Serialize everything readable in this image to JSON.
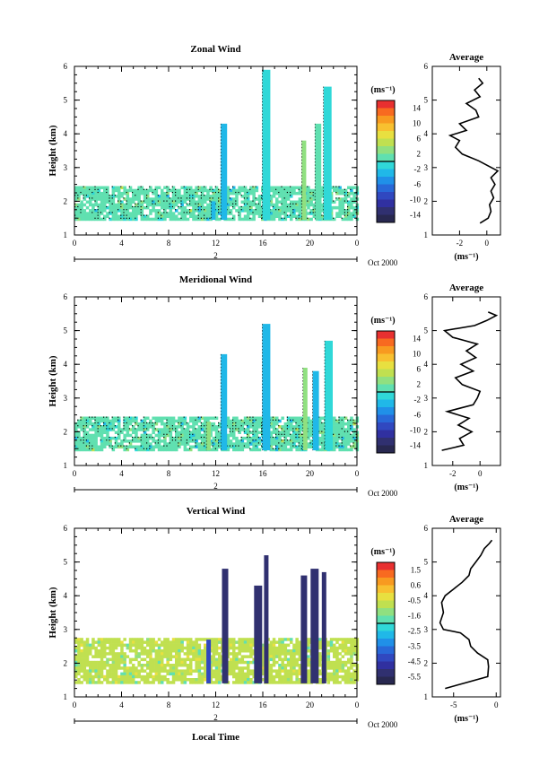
{
  "chart_data": [
    {
      "type": "heatmap",
      "title": "Zonal Wind",
      "ylabel": "Height (km)",
      "xlabel": "",
      "xlim": [
        0,
        24
      ],
      "ylim": [
        1,
        6
      ],
      "x_ticks": [
        "0",
        "4",
        "8",
        "12",
        "16",
        "20",
        "0"
      ],
      "y_ticks": [
        "1",
        "2",
        "3",
        "4",
        "5",
        "6"
      ],
      "day_label": "2",
      "date_label": "Oct 2000",
      "colorbar": {
        "unit": "(ms⁻¹)",
        "range": [
          -16,
          16
        ],
        "labels": [
          "14",
          "10",
          "6",
          "2",
          "-2",
          "-6",
          "-10",
          "-14"
        ],
        "colors": [
          "#e83030",
          "#f86a20",
          "#f89a20",
          "#f8c030",
          "#e8e040",
          "#c0e050",
          "#90e080",
          "#60e0b0",
          "#30d8d8",
          "#20b8e8",
          "#2090e8",
          "#2868d8",
          "#3048c0",
          "#3030a0",
          "#303070",
          "#282850"
        ]
      },
      "field": {
        "dominant_value": 0.5,
        "layer_base_km": 1.45,
        "layer_top_km": 2.45,
        "columns": [
          {
            "t": 11.8,
            "top_km": 2.0,
            "value": -4
          },
          {
            "t": 12.7,
            "top_km": 4.3,
            "value": -3
          },
          {
            "t": 16.3,
            "top_km": 5.9,
            "value": -2
          },
          {
            "t": 19.5,
            "top_km": 3.8,
            "value": 3
          },
          {
            "t": 20.7,
            "top_km": 4.3,
            "value": 1
          },
          {
            "t": 21.5,
            "top_km": 5.4,
            "value": -1
          }
        ]
      },
      "profile": {
        "title": "Average",
        "xlabel": "(ms⁻¹)",
        "xlim": [
          -4,
          1
        ],
        "x_ticks": [
          -2,
          0
        ],
        "height_km": [
          1.35,
          1.5,
          1.7,
          1.9,
          2.1,
          2.3,
          2.5,
          2.7,
          2.9,
          3.05,
          3.2,
          3.4,
          3.6,
          3.8,
          3.95,
          4.1,
          4.3,
          4.5,
          4.7,
          4.9,
          5.1,
          5.3,
          5.5,
          5.65
        ],
        "value": [
          -0.5,
          0.1,
          0.3,
          0.2,
          0.5,
          0.3,
          0.6,
          0.3,
          0.8,
          0.1,
          -0.6,
          -1.8,
          -2.3,
          -2.0,
          -2.7,
          -1.5,
          -2.0,
          -0.6,
          -0.8,
          -1.5,
          -0.5,
          -0.9,
          -0.3,
          -0.6
        ]
      }
    },
    {
      "type": "heatmap",
      "title": "Meridional Wind",
      "ylabel": "Height (km)",
      "xlabel": "",
      "xlim": [
        0,
        24
      ],
      "ylim": [
        1,
        6
      ],
      "x_ticks": [
        "0",
        "4",
        "8",
        "12",
        "16",
        "20",
        "0"
      ],
      "y_ticks": [
        "1",
        "2",
        "3",
        "4",
        "5",
        "6"
      ],
      "day_label": "2",
      "date_label": "Oct 2000",
      "colorbar": {
        "unit": "(ms⁻¹)",
        "range": [
          -16,
          16
        ],
        "labels": [
          "14",
          "10",
          "6",
          "2",
          "-2",
          "-6",
          "-10",
          "-14"
        ],
        "colors": [
          "#e83030",
          "#f86a20",
          "#f89a20",
          "#f8c030",
          "#e8e040",
          "#c0e050",
          "#90e080",
          "#60e0b0",
          "#30d8d8",
          "#20b8e8",
          "#2090e8",
          "#2868d8",
          "#3048c0",
          "#3030a0",
          "#303070",
          "#282850"
        ]
      },
      "field": {
        "dominant_value": 0.5,
        "layer_base_km": 1.45,
        "layer_top_km": 2.45,
        "columns": [
          {
            "t": 11.4,
            "top_km": 2.3,
            "value": 3
          },
          {
            "t": 12.7,
            "top_km": 4.3,
            "value": -4
          },
          {
            "t": 16.3,
            "top_km": 5.2,
            "value": -3
          },
          {
            "t": 19.6,
            "top_km": 3.9,
            "value": 3
          },
          {
            "t": 20.5,
            "top_km": 3.8,
            "value": -3
          },
          {
            "t": 21.6,
            "top_km": 4.7,
            "value": -2
          }
        ]
      },
      "profile": {
        "title": "Average",
        "xlabel": "(ms⁻¹)",
        "xlim": [
          -3.5,
          1.5
        ],
        "x_ticks": [
          -2,
          0
        ],
        "height_km": [
          1.45,
          1.6,
          1.8,
          2.0,
          2.2,
          2.4,
          2.6,
          2.8,
          3.0,
          3.2,
          3.4,
          3.6,
          3.8,
          4.0,
          4.2,
          4.4,
          4.6,
          4.8,
          5.0,
          5.15,
          5.3,
          5.45,
          5.55
        ],
        "value": [
          -2.8,
          -1.2,
          -1.5,
          -0.6,
          -1.6,
          -0.8,
          -2.4,
          -0.5,
          -0.2,
          0.0,
          -1.3,
          -1.8,
          -0.5,
          -1.4,
          -0.3,
          -1.0,
          -0.2,
          -2.0,
          -2.6,
          -0.4,
          0.5,
          1.2,
          0.6
        ]
      }
    },
    {
      "type": "heatmap",
      "title": "Vertical Wind",
      "ylabel": "Height (km)",
      "xlabel": "Local Time",
      "xlim": [
        0,
        24
      ],
      "ylim": [
        1,
        6
      ],
      "x_ticks": [
        "0",
        "4",
        "8",
        "12",
        "16",
        "20",
        "0"
      ],
      "y_ticks": [
        "1",
        "2",
        "3",
        "4",
        "5",
        "6"
      ],
      "day_label": "2",
      "date_label": "Oct 2000",
      "colorbar": {
        "unit": "(ms⁻¹)",
        "range": [
          -6.1,
          2.1
        ],
        "labels": [
          "1.5",
          "0.6",
          "-0.5",
          "-1.6",
          "-2.5",
          "-3.5",
          "-4.5",
          "-5.5"
        ],
        "colors": [
          "#e83030",
          "#f86a20",
          "#f89a20",
          "#f8c030",
          "#e8e040",
          "#c0e050",
          "#90e080",
          "#60e0b0",
          "#30d8d8",
          "#20b8e8",
          "#2090e8",
          "#2868d8",
          "#3048c0",
          "#3030a0",
          "#303070",
          "#282850"
        ]
      },
      "field": {
        "dominant_value": -0.9,
        "layer_base_km": 1.4,
        "layer_top_km": 2.75,
        "columns": [
          {
            "t": 11.4,
            "top_km": 2.7,
            "value": -4.6
          },
          {
            "t": 12.8,
            "top_km": 4.8,
            "value": -5.8
          },
          {
            "t": 15.6,
            "top_km": 4.3,
            "value": -5.8
          },
          {
            "t": 16.3,
            "top_km": 5.2,
            "value": -5.8
          },
          {
            "t": 19.5,
            "top_km": 4.6,
            "value": -5.8
          },
          {
            "t": 20.4,
            "top_km": 4.8,
            "value": -5.8
          },
          {
            "t": 21.2,
            "top_km": 4.7,
            "value": -5.8
          }
        ]
      },
      "profile": {
        "title": "Average",
        "xlabel": "(ms⁻¹)",
        "xlim": [
          -7.5,
          0.5
        ],
        "x_ticks": [
          -5,
          0
        ],
        "height_km": [
          1.25,
          1.6,
          1.9,
          2.1,
          2.3,
          2.5,
          2.7,
          2.9,
          3.0,
          3.2,
          3.5,
          3.8,
          4.0,
          4.2,
          4.4,
          4.6,
          4.8,
          5.0,
          5.2,
          5.4,
          5.55,
          5.65
        ],
        "value": [
          -6.0,
          -1.0,
          -0.9,
          -1.0,
          -2.2,
          -3.0,
          -3.2,
          -4.2,
          -6.2,
          -6.6,
          -6.2,
          -6.4,
          -6.0,
          -5.0,
          -4.0,
          -3.2,
          -3.0,
          -2.4,
          -1.8,
          -1.4,
          -0.8,
          -0.5
        ]
      }
    }
  ]
}
